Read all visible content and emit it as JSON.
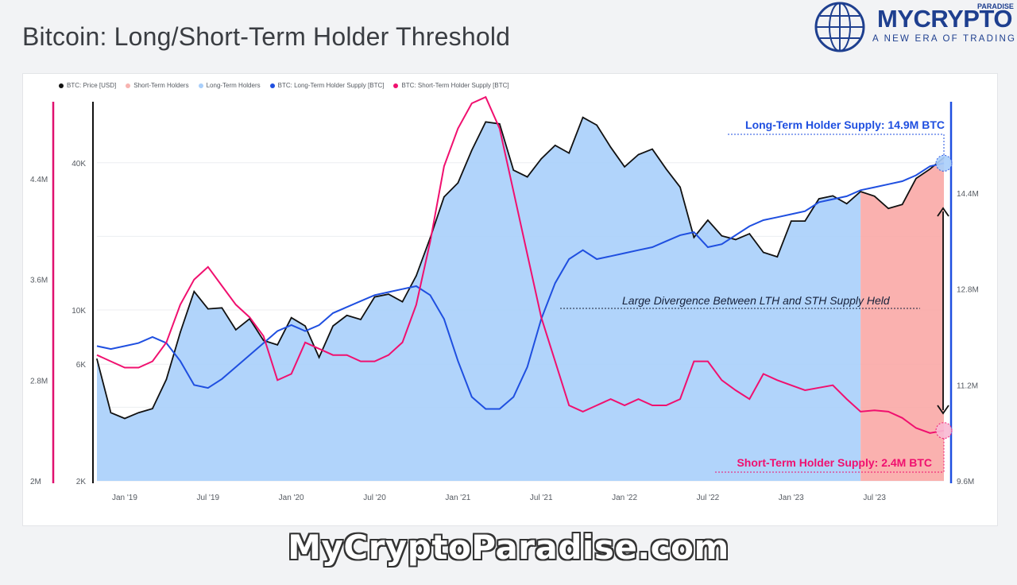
{
  "title": "Bitcoin: Long/Short-Term Holder Threshold",
  "logo": {
    "name": "MYCRYPTO",
    "small": "PARADISE",
    "tagline": "A NEW ERA OF TRADING",
    "icon": "globe-icon"
  },
  "watermark": "MyCryptoParadise.com",
  "chart_data": {
    "type": "area",
    "title": "Bitcoin: Long/Short-Term Holder Threshold",
    "legend_placement": "top-left",
    "legend": [
      {
        "label": "BTC: Price [USD]",
        "color": "#111111"
      },
      {
        "label": "Short-Term Holders",
        "color": "#f7b3b0"
      },
      {
        "label": "Long-Term Holders",
        "color": "#a9cffb"
      },
      {
        "label": "BTC: Long-Term Holder Supply [BTC]",
        "color": "#1f4fe0"
      },
      {
        "label": "BTC: Short-Term Holder Supply [BTC]",
        "color": "#f0106f"
      }
    ],
    "x_ticks": [
      "Jan '19",
      "Jul '19",
      "Jan '20",
      "Jul '20",
      "Jan '21",
      "Jul '21",
      "Jan '22",
      "Jul '22",
      "Jan '23",
      "Jul '23"
    ],
    "x_range": [
      "2018-11",
      "2023-12"
    ],
    "price_axis": {
      "scale": "log",
      "ticks": [
        "2K",
        "6K",
        "10K",
        "40K"
      ],
      "ylim": [
        2000,
        70000
      ]
    },
    "sth_axis": {
      "ticks": [
        "2M",
        "2.8M",
        "3.6M",
        "4.4M"
      ],
      "ylim": [
        2.0,
        5.0
      ],
      "unit": "M BTC"
    },
    "lth_axis": {
      "ticks": [
        "9.6M",
        "11.2M",
        "12.8M",
        "14.4M"
      ],
      "ylim": [
        9.6,
        15.9
      ],
      "unit": "M BTC"
    },
    "series": [
      {
        "name": "BTC: Price [USD]",
        "axis": "price",
        "points": [
          [
            "2018-11",
            6300
          ],
          [
            "2018-12",
            3800
          ],
          [
            "2019-01",
            3600
          ],
          [
            "2019-02",
            3800
          ],
          [
            "2019-03",
            3950
          ],
          [
            "2019-04",
            5200
          ],
          [
            "2019-05",
            8100
          ],
          [
            "2019-06",
            11900
          ],
          [
            "2019-07",
            10100
          ],
          [
            "2019-08",
            10200
          ],
          [
            "2019-09",
            8300
          ],
          [
            "2019-10",
            9200
          ],
          [
            "2019-11",
            7500
          ],
          [
            "2019-12",
            7200
          ],
          [
            "2020-01",
            9300
          ],
          [
            "2020-02",
            8600
          ],
          [
            "2020-03",
            6400
          ],
          [
            "2020-04",
            8600
          ],
          [
            "2020-05",
            9500
          ],
          [
            "2020-06",
            9140
          ],
          [
            "2020-07",
            11300
          ],
          [
            "2020-08",
            11600
          ],
          [
            "2020-09",
            10800
          ],
          [
            "2020-10",
            13800
          ],
          [
            "2020-11",
            19700
          ],
          [
            "2020-12",
            29000
          ],
          [
            "2021-01",
            33100
          ],
          [
            "2021-02",
            45000
          ],
          [
            "2021-03",
            58800
          ],
          [
            "2021-04",
            57700
          ],
          [
            "2021-05",
            37300
          ],
          [
            "2021-06",
            35000
          ],
          [
            "2021-07",
            41500
          ],
          [
            "2021-08",
            47100
          ],
          [
            "2021-09",
            43800
          ],
          [
            "2021-10",
            61300
          ],
          [
            "2021-11",
            57000
          ],
          [
            "2021-12",
            46300
          ],
          [
            "2022-01",
            38500
          ],
          [
            "2022-02",
            43200
          ],
          [
            "2022-03",
            45500
          ],
          [
            "2022-04",
            37700
          ],
          [
            "2022-05",
            31800
          ],
          [
            "2022-06",
            19800
          ],
          [
            "2022-07",
            23300
          ],
          [
            "2022-08",
            20100
          ],
          [
            "2022-09",
            19400
          ],
          [
            "2022-10",
            20500
          ],
          [
            "2022-11",
            17200
          ],
          [
            "2022-12",
            16500
          ],
          [
            "2023-01",
            23100
          ],
          [
            "2023-02",
            23100
          ],
          [
            "2023-03",
            28500
          ],
          [
            "2023-04",
            29300
          ],
          [
            "2023-05",
            27200
          ],
          [
            "2023-06",
            30500
          ],
          [
            "2023-07",
            29200
          ],
          [
            "2023-08",
            26000
          ],
          [
            "2023-09",
            27000
          ],
          [
            "2023-10",
            34500
          ],
          [
            "2023-11",
            37700
          ],
          [
            "2023-12",
            42000
          ]
        ]
      },
      {
        "name": "BTC: Long-Term Holder Supply [BTC]",
        "axis": "lth",
        "points": [
          [
            "2018-11",
            11.85
          ],
          [
            "2018-12",
            11.8
          ],
          [
            "2019-01",
            11.85
          ],
          [
            "2019-02",
            11.9
          ],
          [
            "2019-03",
            12.0
          ],
          [
            "2019-04",
            11.9
          ],
          [
            "2019-05",
            11.6
          ],
          [
            "2019-06",
            11.2
          ],
          [
            "2019-07",
            11.15
          ],
          [
            "2019-08",
            11.3
          ],
          [
            "2019-09",
            11.5
          ],
          [
            "2019-10",
            11.7
          ],
          [
            "2019-11",
            11.9
          ],
          [
            "2019-12",
            12.1
          ],
          [
            "2020-01",
            12.2
          ],
          [
            "2020-02",
            12.1
          ],
          [
            "2020-03",
            12.2
          ],
          [
            "2020-04",
            12.4
          ],
          [
            "2020-05",
            12.5
          ],
          [
            "2020-06",
            12.6
          ],
          [
            "2020-07",
            12.7
          ],
          [
            "2020-08",
            12.75
          ],
          [
            "2020-09",
            12.8
          ],
          [
            "2020-10",
            12.85
          ],
          [
            "2020-11",
            12.7
          ],
          [
            "2020-12",
            12.3
          ],
          [
            "2021-01",
            11.6
          ],
          [
            "2021-02",
            11.0
          ],
          [
            "2021-03",
            10.8
          ],
          [
            "2021-04",
            10.8
          ],
          [
            "2021-05",
            11.0
          ],
          [
            "2021-06",
            11.5
          ],
          [
            "2021-07",
            12.3
          ],
          [
            "2021-08",
            12.9
          ],
          [
            "2021-09",
            13.3
          ],
          [
            "2021-10",
            13.45
          ],
          [
            "2021-11",
            13.3
          ],
          [
            "2021-12",
            13.35
          ],
          [
            "2022-01",
            13.4
          ],
          [
            "2022-02",
            13.45
          ],
          [
            "2022-03",
            13.5
          ],
          [
            "2022-04",
            13.6
          ],
          [
            "2022-05",
            13.7
          ],
          [
            "2022-06",
            13.75
          ],
          [
            "2022-07",
            13.5
          ],
          [
            "2022-08",
            13.55
          ],
          [
            "2022-09",
            13.7
          ],
          [
            "2022-10",
            13.85
          ],
          [
            "2022-11",
            13.95
          ],
          [
            "2022-12",
            14.0
          ],
          [
            "2023-01",
            14.05
          ],
          [
            "2023-02",
            14.1
          ],
          [
            "2023-03",
            14.25
          ],
          [
            "2023-04",
            14.3
          ],
          [
            "2023-05",
            14.35
          ],
          [
            "2023-06",
            14.45
          ],
          [
            "2023-07",
            14.5
          ],
          [
            "2023-08",
            14.55
          ],
          [
            "2023-09",
            14.6
          ],
          [
            "2023-10",
            14.7
          ],
          [
            "2023-11",
            14.85
          ],
          [
            "2023-12",
            14.9
          ]
        ]
      },
      {
        "name": "BTC: Short-Term Holder Supply [BTC]",
        "axis": "sth",
        "points": [
          [
            "2018-11",
            3.0
          ],
          [
            "2018-12",
            2.95
          ],
          [
            "2019-01",
            2.9
          ],
          [
            "2019-02",
            2.9
          ],
          [
            "2019-03",
            2.95
          ],
          [
            "2019-04",
            3.1
          ],
          [
            "2019-05",
            3.4
          ],
          [
            "2019-06",
            3.6
          ],
          [
            "2019-07",
            3.7
          ],
          [
            "2019-08",
            3.55
          ],
          [
            "2019-09",
            3.4
          ],
          [
            "2019-10",
            3.3
          ],
          [
            "2019-11",
            3.15
          ],
          [
            "2019-12",
            2.8
          ],
          [
            "2020-01",
            2.85
          ],
          [
            "2020-02",
            3.1
          ],
          [
            "2020-03",
            3.05
          ],
          [
            "2020-04",
            3.0
          ],
          [
            "2020-05",
            3.0
          ],
          [
            "2020-06",
            2.95
          ],
          [
            "2020-07",
            2.95
          ],
          [
            "2020-08",
            3.0
          ],
          [
            "2020-09",
            3.1
          ],
          [
            "2020-10",
            3.4
          ],
          [
            "2020-11",
            3.9
          ],
          [
            "2020-12",
            4.5
          ],
          [
            "2021-01",
            4.8
          ],
          [
            "2021-02",
            5.0
          ],
          [
            "2021-03",
            5.05
          ],
          [
            "2021-04",
            4.8
          ],
          [
            "2021-05",
            4.3
          ],
          [
            "2021-06",
            3.8
          ],
          [
            "2021-07",
            3.3
          ],
          [
            "2021-08",
            2.95
          ],
          [
            "2021-09",
            2.6
          ],
          [
            "2021-10",
            2.55
          ],
          [
            "2021-11",
            2.6
          ],
          [
            "2021-12",
            2.65
          ],
          [
            "2022-01",
            2.6
          ],
          [
            "2022-02",
            2.65
          ],
          [
            "2022-03",
            2.6
          ],
          [
            "2022-04",
            2.6
          ],
          [
            "2022-05",
            2.65
          ],
          [
            "2022-06",
            2.95
          ],
          [
            "2022-07",
            2.95
          ],
          [
            "2022-08",
            2.8
          ],
          [
            "2022-09",
            2.72
          ],
          [
            "2022-10",
            2.65
          ],
          [
            "2022-11",
            2.85
          ],
          [
            "2022-12",
            2.8
          ],
          [
            "2023-01",
            2.76
          ],
          [
            "2023-02",
            2.72
          ],
          [
            "2023-03",
            2.74
          ],
          [
            "2023-04",
            2.76
          ],
          [
            "2023-05",
            2.65
          ],
          [
            "2023-06",
            2.55
          ],
          [
            "2023-07",
            2.56
          ],
          [
            "2023-08",
            2.55
          ],
          [
            "2023-09",
            2.5
          ],
          [
            "2023-10",
            2.42
          ],
          [
            "2023-11",
            2.38
          ],
          [
            "2023-12",
            2.4
          ]
        ]
      }
    ],
    "short_term_region_start": "2023-06",
    "annotations": [
      {
        "text": "Long-Term Holder Supply: 14.9M BTC",
        "color": "#1f4fe0"
      },
      {
        "text": "Short-Term Holder Supply: 2.4M BTC",
        "color": "#f0106f"
      },
      {
        "text": "Large Divergence Between LTH and STH Supply Held",
        "color": "#16213a"
      }
    ]
  }
}
